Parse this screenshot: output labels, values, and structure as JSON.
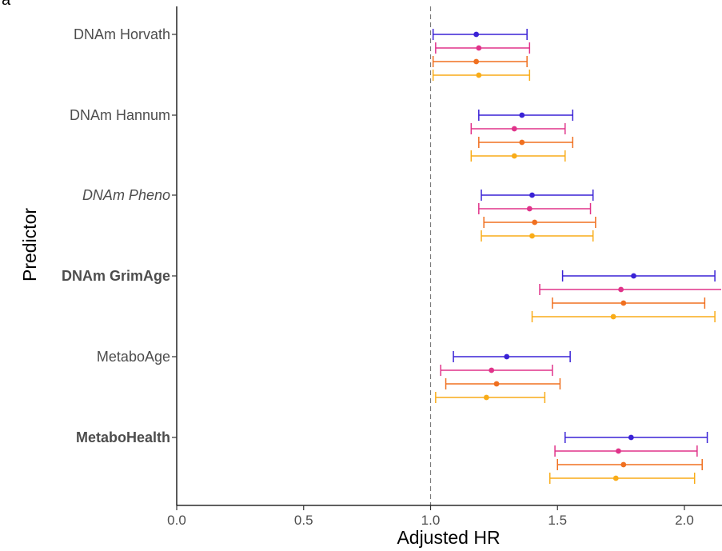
{
  "panel_label": "a",
  "chart_data": {
    "type": "forest",
    "xlabel": "Adjusted HR",
    "ylabel": "Predictor",
    "xlim": [
      0.0,
      2.15
    ],
    "xticks": [
      "0.0",
      "0.5",
      "1.0",
      "1.5",
      "2.0"
    ],
    "reference_line": 1.0,
    "grid": false,
    "series_colors": [
      "#3a22d6",
      "#e0338a",
      "#f07020",
      "#f9ac18"
    ],
    "predictors": [
      {
        "label": "DNAm Horvath",
        "style": "normal",
        "estimates": [
          {
            "hr": 1.18,
            "lo": 1.01,
            "hi": 1.38
          },
          {
            "hr": 1.19,
            "lo": 1.02,
            "hi": 1.39
          },
          {
            "hr": 1.18,
            "lo": 1.01,
            "hi": 1.38
          },
          {
            "hr": 1.19,
            "lo": 1.01,
            "hi": 1.39
          }
        ]
      },
      {
        "label": "DNAm Hannum",
        "style": "normal",
        "estimates": [
          {
            "hr": 1.36,
            "lo": 1.19,
            "hi": 1.56
          },
          {
            "hr": 1.33,
            "lo": 1.16,
            "hi": 1.53
          },
          {
            "hr": 1.36,
            "lo": 1.19,
            "hi": 1.56
          },
          {
            "hr": 1.33,
            "lo": 1.16,
            "hi": 1.53
          }
        ]
      },
      {
        "label": "DNAm Pheno",
        "style": "italic",
        "estimates": [
          {
            "hr": 1.4,
            "lo": 1.2,
            "hi": 1.64
          },
          {
            "hr": 1.39,
            "lo": 1.19,
            "hi": 1.63
          },
          {
            "hr": 1.41,
            "lo": 1.21,
            "hi": 1.65
          },
          {
            "hr": 1.4,
            "lo": 1.2,
            "hi": 1.64
          }
        ]
      },
      {
        "label": "DNAm GrimAge",
        "style": "bold",
        "estimates": [
          {
            "hr": 1.8,
            "lo": 1.52,
            "hi": 2.12
          },
          {
            "hr": 1.75,
            "lo": 1.43,
            "hi": 2.15
          },
          {
            "hr": 1.76,
            "lo": 1.48,
            "hi": 2.08
          },
          {
            "hr": 1.72,
            "lo": 1.4,
            "hi": 2.12
          }
        ]
      },
      {
        "label": "MetaboAge",
        "style": "normal",
        "estimates": [
          {
            "hr": 1.3,
            "lo": 1.09,
            "hi": 1.55
          },
          {
            "hr": 1.24,
            "lo": 1.04,
            "hi": 1.48
          },
          {
            "hr": 1.26,
            "lo": 1.06,
            "hi": 1.51
          },
          {
            "hr": 1.22,
            "lo": 1.02,
            "hi": 1.45
          }
        ]
      },
      {
        "label": "MetaboHealth",
        "style": "bold",
        "estimates": [
          {
            "hr": 1.79,
            "lo": 1.53,
            "hi": 2.09
          },
          {
            "hr": 1.74,
            "lo": 1.49,
            "hi": 2.05
          },
          {
            "hr": 1.76,
            "lo": 1.5,
            "hi": 2.07
          },
          {
            "hr": 1.73,
            "lo": 1.47,
            "hi": 2.04
          }
        ]
      }
    ]
  }
}
